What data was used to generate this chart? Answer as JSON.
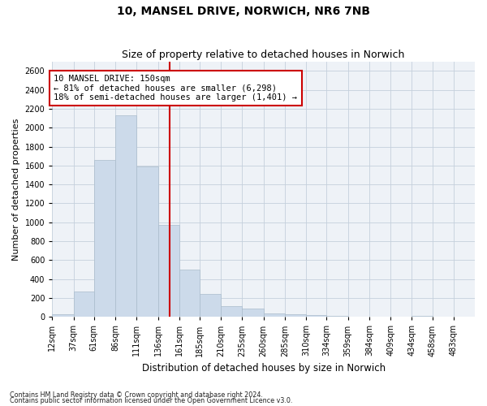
{
  "title": "10, MANSEL DRIVE, NORWICH, NR6 7NB",
  "subtitle": "Size of property relative to detached houses in Norwich",
  "xlabel": "Distribution of detached houses by size in Norwich",
  "ylabel": "Number of detached properties",
  "bar_color": "#ccdaea",
  "bar_edge_color": "#aabccc",
  "property_line_color": "#cc0000",
  "property_size": 150,
  "annotation_text": "10 MANSEL DRIVE: 150sqm\n← 81% of detached houses are smaller (6,298)\n18% of semi-detached houses are larger (1,401) →",
  "annotation_box_color": "#ffffff",
  "annotation_box_edge": "#cc0000",
  "footnote1": "Contains HM Land Registry data © Crown copyright and database right 2024.",
  "footnote2": "Contains public sector information licensed under the Open Government Licence v3.0.",
  "bin_edges": [
    12,
    37,
    61,
    86,
    111,
    136,
    161,
    185,
    210,
    235,
    260,
    285,
    310,
    334,
    359,
    384,
    409,
    434,
    458,
    483,
    508
  ],
  "counts": [
    25,
    270,
    1660,
    2130,
    1590,
    970,
    500,
    245,
    110,
    90,
    35,
    30,
    20,
    15,
    5,
    5,
    0,
    15,
    5,
    0
  ],
  "ylim": [
    0,
    2700
  ],
  "yticks": [
    0,
    200,
    400,
    600,
    800,
    1000,
    1200,
    1400,
    1600,
    1800,
    2000,
    2200,
    2400,
    2600
  ],
  "background_color": "#eef2f7",
  "grid_color": "#c5d0dc",
  "title_fontsize": 10,
  "subtitle_fontsize": 9,
  "xlabel_fontsize": 8.5,
  "ylabel_fontsize": 8,
  "tick_fontsize": 7,
  "annot_fontsize": 7.5
}
